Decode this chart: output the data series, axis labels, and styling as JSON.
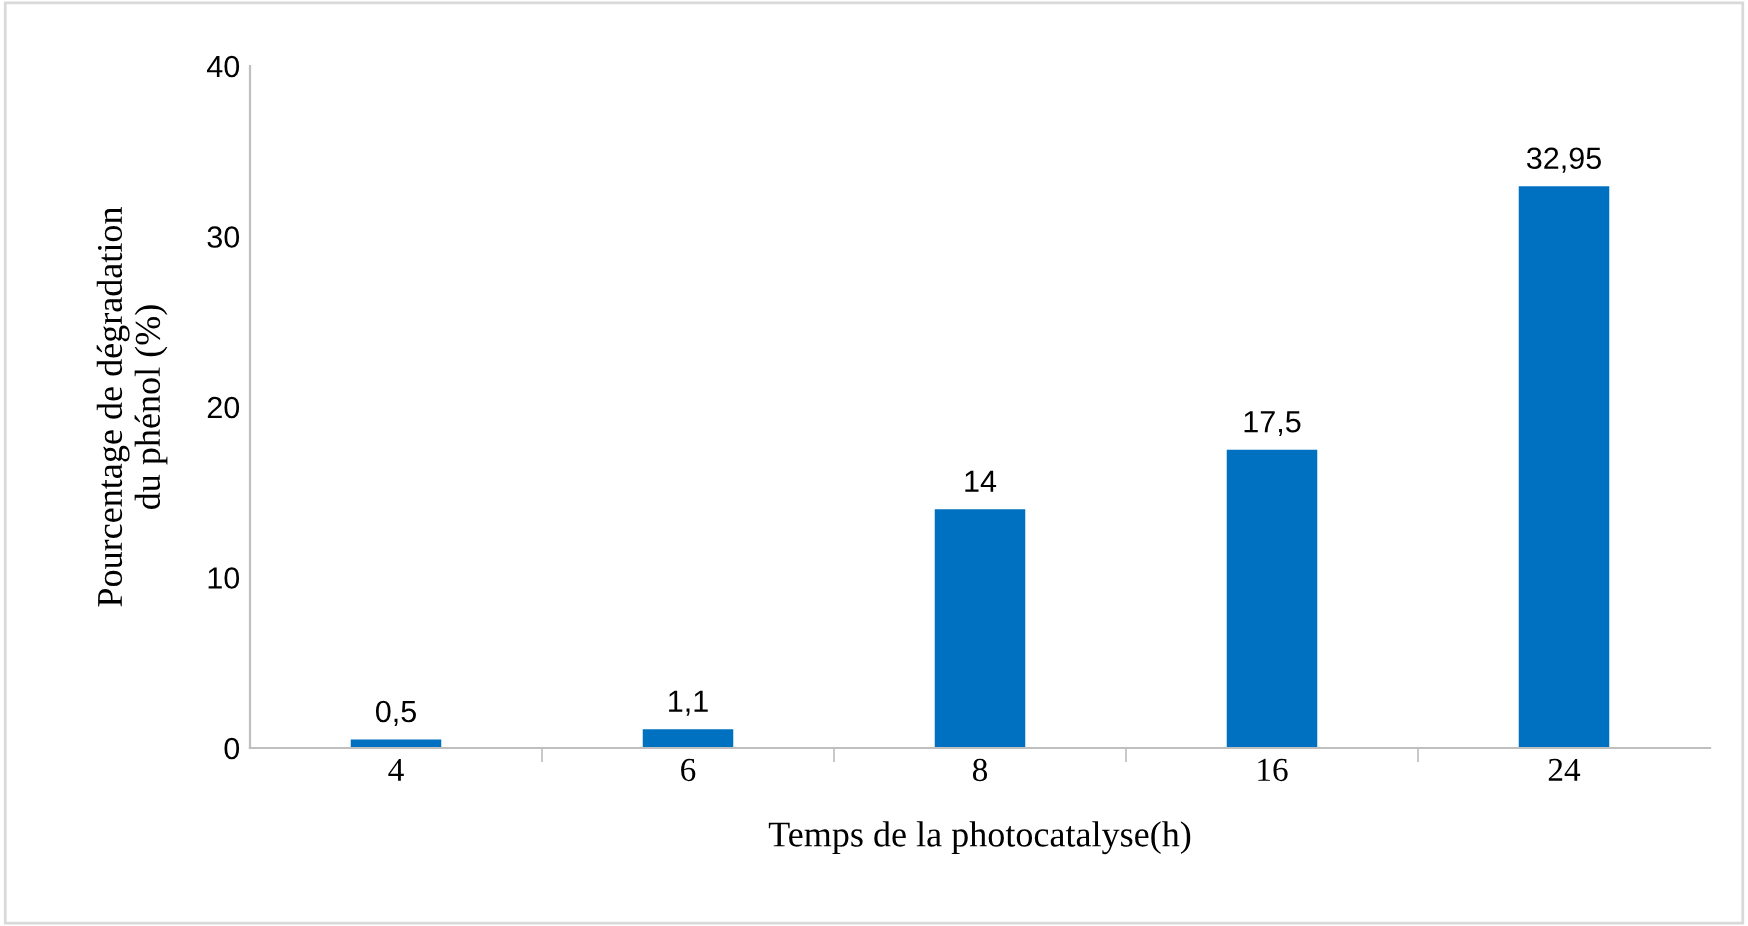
{
  "chart_data": {
    "type": "bar",
    "xlabel": "Temps de la photocatalyse(h)",
    "ylabel": "Pourcentage de dégradation\ndu phénol (%)",
    "categories": [
      "4",
      "6",
      "8",
      "16",
      "24"
    ],
    "values": [
      0.5,
      1.1,
      14,
      17.5,
      32.95
    ],
    "value_labels": [
      "0,5",
      "1,1",
      "14",
      "17,5",
      "32,95"
    ],
    "color": "#0070c0",
    "ylim": [
      0,
      40
    ],
    "yticks": [
      0,
      10,
      20,
      30,
      40
    ],
    "grid": false,
    "legend": false
  }
}
